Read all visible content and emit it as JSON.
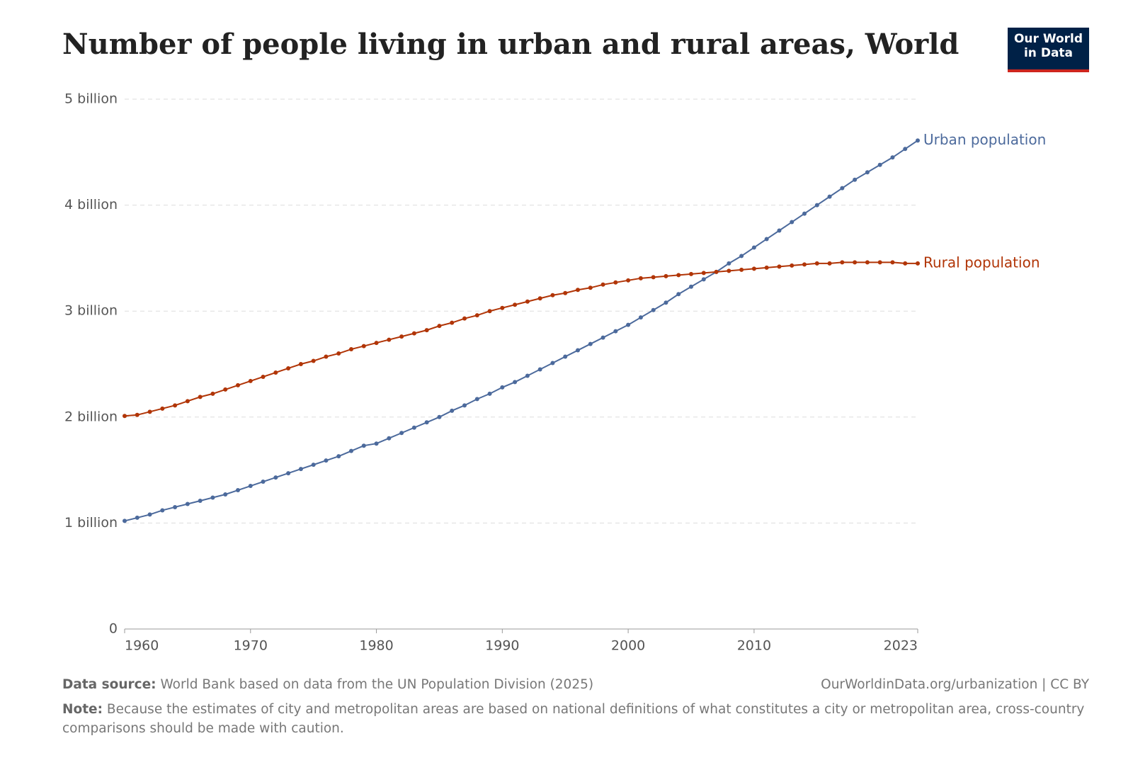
{
  "chart_data": {
    "type": "line",
    "title": "Number of people living in urban and rural areas, World",
    "logo": [
      "Our World",
      "in Data"
    ],
    "source_label": "Data source:",
    "source": "World Bank based on data from the UN Population Division (2025)",
    "url": "OurWorldinData.org/urbanization | CC BY",
    "note_label": "Note:",
    "note": "Because the estimates of city and metropolitan areas are based on national definitions of what constitutes a city or metropolitan area, cross-country comparisons should be made with caution.",
    "x": [
      1960,
      1961,
      1962,
      1963,
      1964,
      1965,
      1966,
      1967,
      1968,
      1969,
      1970,
      1971,
      1972,
      1973,
      1974,
      1975,
      1976,
      1977,
      1978,
      1979,
      1980,
      1981,
      1982,
      1983,
      1984,
      1985,
      1986,
      1987,
      1988,
      1989,
      1990,
      1991,
      1992,
      1993,
      1994,
      1995,
      1996,
      1997,
      1998,
      1999,
      2000,
      2001,
      2002,
      2003,
      2004,
      2005,
      2006,
      2007,
      2008,
      2009,
      2010,
      2011,
      2012,
      2013,
      2014,
      2015,
      2016,
      2017,
      2018,
      2019,
      2020,
      2021,
      2022,
      2023
    ],
    "series": [
      {
        "name": "Urban population",
        "color": "#4c6a9c",
        "values": [
          1.02,
          1.05,
          1.08,
          1.12,
          1.15,
          1.18,
          1.21,
          1.24,
          1.27,
          1.31,
          1.35,
          1.39,
          1.43,
          1.47,
          1.51,
          1.55,
          1.59,
          1.63,
          1.68,
          1.73,
          1.75,
          1.8,
          1.85,
          1.9,
          1.95,
          2.0,
          2.06,
          2.11,
          2.17,
          2.22,
          2.28,
          2.33,
          2.39,
          2.45,
          2.51,
          2.57,
          2.63,
          2.69,
          2.75,
          2.81,
          2.87,
          2.94,
          3.01,
          3.08,
          3.16,
          3.23,
          3.3,
          3.37,
          3.45,
          3.52,
          3.6,
          3.68,
          3.76,
          3.84,
          3.92,
          4.0,
          4.08,
          4.16,
          4.24,
          4.31,
          4.38,
          4.45,
          4.53,
          4.61
        ]
      },
      {
        "name": "Rural population",
        "color": "#b13507",
        "values": [
          2.01,
          2.02,
          2.05,
          2.08,
          2.11,
          2.15,
          2.19,
          2.22,
          2.26,
          2.3,
          2.34,
          2.38,
          2.42,
          2.46,
          2.5,
          2.53,
          2.57,
          2.6,
          2.64,
          2.67,
          2.7,
          2.73,
          2.76,
          2.79,
          2.82,
          2.86,
          2.89,
          2.93,
          2.96,
          3.0,
          3.03,
          3.06,
          3.09,
          3.12,
          3.15,
          3.17,
          3.2,
          3.22,
          3.25,
          3.27,
          3.29,
          3.31,
          3.32,
          3.33,
          3.34,
          3.35,
          3.36,
          3.37,
          3.38,
          3.39,
          3.4,
          3.41,
          3.42,
          3.43,
          3.44,
          3.45,
          3.45,
          3.46,
          3.46,
          3.46,
          3.46,
          3.46,
          3.45,
          3.45
        ]
      }
    ],
    "xlim": [
      1960,
      2023
    ],
    "xticks": [
      1960,
      1970,
      1980,
      1990,
      2000,
      2010,
      2023
    ],
    "ylim": [
      0,
      5
    ],
    "yticks": [
      0,
      {
        "value": 1,
        "label": "1 billion"
      },
      {
        "value": 2,
        "label": "2 billion"
      },
      {
        "value": 3,
        "label": "3 billion"
      },
      {
        "value": 4,
        "label": "4 billion"
      },
      {
        "value": 5,
        "label": "5 billion"
      }
    ],
    "grid": true
  }
}
